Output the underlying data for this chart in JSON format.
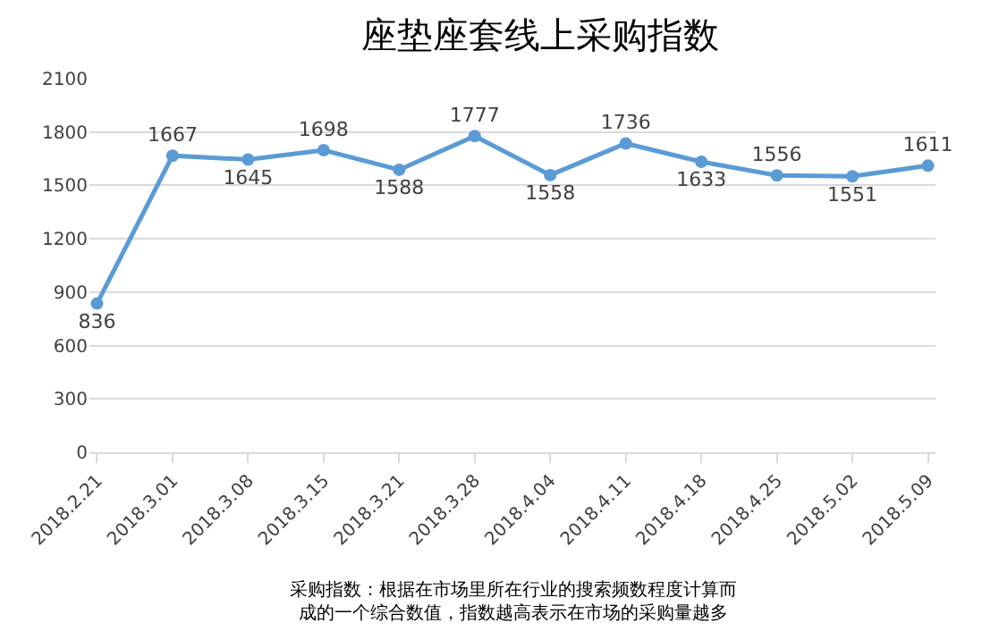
{
  "chart_data": {
    "type": "line",
    "title": "座垫座套线上采购指数",
    "categories": [
      "2018.2.21",
      "2018.3.01",
      "2018.3.08",
      "2018.3.15",
      "2018.3.21",
      "2018.3.28",
      "2018.4.04",
      "2018.4.11",
      "2018.4.18",
      "2018.4.25",
      "2018.5.02",
      "2018.5.09"
    ],
    "series": [
      {
        "color": "#5b9bd5",
        "values": [
          836,
          1667,
          1645,
          1698,
          1588,
          1777,
          1558,
          1736,
          1633,
          1556,
          1551,
          1611
        ]
      }
    ],
    "ylim": [
      0,
      2100
    ],
    "yticks": [
      0,
      300,
      600,
      900,
      1200,
      1500,
      1800,
      2100
    ],
    "grid": "y",
    "marker": "circle",
    "line_style": "solid",
    "data_labels": true,
    "annotations": [
      "采购指数：根据在市场里所在行业的搜索频数程度计算而成的一个综合数值，指数越高表示在市场的采购量越多"
    ]
  }
}
